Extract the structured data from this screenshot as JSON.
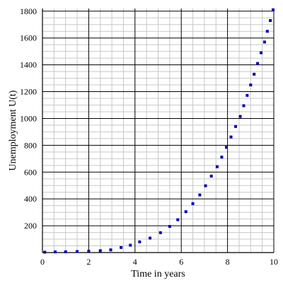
{
  "chart_data": {
    "type": "scatter",
    "xlabel": "Time in years",
    "ylabel": "Unemployment U(t)",
    "xlim": [
      0,
      10
    ],
    "ylim": [
      0,
      1820
    ],
    "x_ticks": [
      "0",
      "2",
      "4",
      "6",
      "8",
      "10"
    ],
    "y_ticks": [
      "200",
      "400",
      "600",
      "800",
      "1000",
      "1200",
      "1400",
      "1600",
      "1800"
    ],
    "grid": true,
    "marker_color": "#0000b4",
    "points": [
      {
        "x": 0.1,
        "y": 3
      },
      {
        "x": 0.55,
        "y": 5
      },
      {
        "x": 1.0,
        "y": 6
      },
      {
        "x": 1.5,
        "y": 8
      },
      {
        "x": 2.0,
        "y": 10
      },
      {
        "x": 2.5,
        "y": 14
      },
      {
        "x": 2.95,
        "y": 20
      },
      {
        "x": 3.4,
        "y": 38
      },
      {
        "x": 3.8,
        "y": 55
      },
      {
        "x": 4.2,
        "y": 80
      },
      {
        "x": 4.65,
        "y": 108
      },
      {
        "x": 5.1,
        "y": 148
      },
      {
        "x": 5.5,
        "y": 195
      },
      {
        "x": 5.85,
        "y": 245
      },
      {
        "x": 6.2,
        "y": 305
      },
      {
        "x": 6.5,
        "y": 365
      },
      {
        "x": 6.8,
        "y": 430
      },
      {
        "x": 7.05,
        "y": 498
      },
      {
        "x": 7.3,
        "y": 570
      },
      {
        "x": 7.55,
        "y": 640
      },
      {
        "x": 7.75,
        "y": 712
      },
      {
        "x": 7.95,
        "y": 785
      },
      {
        "x": 8.15,
        "y": 862
      },
      {
        "x": 8.35,
        "y": 940
      },
      {
        "x": 8.55,
        "y": 1015
      },
      {
        "x": 8.7,
        "y": 1095
      },
      {
        "x": 8.85,
        "y": 1172
      },
      {
        "x": 9.0,
        "y": 1250
      },
      {
        "x": 9.15,
        "y": 1330
      },
      {
        "x": 9.3,
        "y": 1410
      },
      {
        "x": 9.45,
        "y": 1490
      },
      {
        "x": 9.6,
        "y": 1570
      },
      {
        "x": 9.72,
        "y": 1650
      },
      {
        "x": 9.85,
        "y": 1730
      },
      {
        "x": 9.97,
        "y": 1810
      }
    ]
  }
}
